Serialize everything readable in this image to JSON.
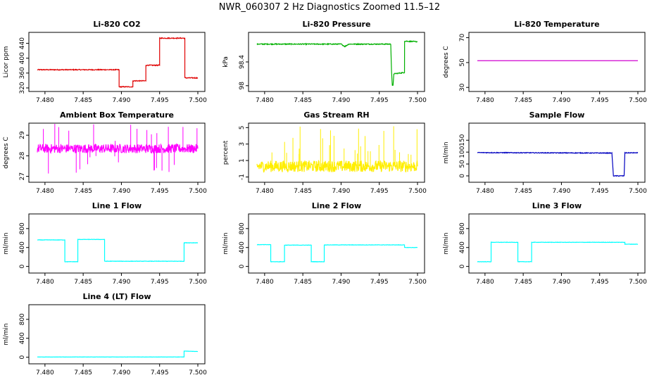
{
  "figure": {
    "title": "NWR_060307  2 Hz Diagnostics Zoomed 11.5–12"
  },
  "chart_data": [
    {
      "type": "line",
      "title": "Li-820 CO2",
      "ylabel": "Licor ppm",
      "xlim": [
        7.479,
        7.5
      ],
      "xticks": [
        "7.480",
        "7.485",
        "7.490",
        "7.495",
        "7.500"
      ],
      "ylim": [
        318,
        462
      ],
      "yticks": [
        320,
        360,
        400,
        440
      ],
      "color": "#e00000",
      "noise": 1.2,
      "series": [
        {
          "x": [
            7.479,
            7.4897,
            7.4897,
            7.4915,
            7.4915,
            7.4932,
            7.4932,
            7.495,
            7.495,
            7.4983,
            7.4983,
            7.5
          ],
          "y": [
            369,
            369,
            323,
            323,
            339,
            339,
            381,
            381,
            454,
            454,
            347,
            347
          ]
        }
      ]
    },
    {
      "type": "line",
      "title": "Li-820 Pressure",
      "ylabel": "kPa",
      "xlim": [
        7.479,
        7.5
      ],
      "xticks": [
        "7.480",
        "7.485",
        "7.490",
        "7.495",
        "7.500"
      ],
      "ylim": [
        97.95,
        98.85
      ],
      "yticks": [
        98.0,
        98.4
      ],
      "color": "#00b000",
      "noise": 0.008,
      "series": [
        {
          "x": [
            7.479,
            7.49,
            7.4905,
            7.491,
            7.4965,
            7.4966,
            7.4967,
            7.4968,
            7.4969,
            7.4982,
            7.4983,
            7.49831,
            7.5
          ],
          "y": [
            98.7,
            98.7,
            98.66,
            98.7,
            98.7,
            98.25,
            98.0,
            98.0,
            98.2,
            98.22,
            98.22,
            98.75,
            98.74
          ]
        }
      ]
    },
    {
      "type": "line",
      "title": "Li-820 Temperature",
      "ylabel": "degrees C",
      "xlim": [
        7.479,
        7.5
      ],
      "xticks": [
        "7.480",
        "7.485",
        "7.490",
        "7.495",
        "7.500"
      ],
      "ylim": [
        29,
        72
      ],
      "yticks": [
        30,
        50,
        70
      ],
      "color": "#d000d0",
      "noise": 0,
      "series": [
        {
          "x": [
            7.479,
            7.5
          ],
          "y": [
            51.5,
            51.5
          ]
        }
      ]
    },
    {
      "type": "line",
      "title": "Ambient Box Temperature",
      "ylabel": "degrees C",
      "xlim": [
        7.479,
        7.5
      ],
      "xticks": [
        "7.480",
        "7.485",
        "7.490",
        "7.495",
        "7.500"
      ],
      "ylim": [
        26.85,
        29.45
      ],
      "yticks": [
        27.0,
        28.0,
        29.0
      ],
      "color": "#ff00ff",
      "noise": 0.22,
      "series": [
        {
          "x": [
            7.479,
            7.5
          ],
          "y": [
            28.35,
            28.35
          ]
        }
      ]
    },
    {
      "type": "line",
      "title": "Gas Stream RH",
      "ylabel": "percent",
      "xlim": [
        7.479,
        7.5
      ],
      "xticks": [
        "7.480",
        "7.485",
        "7.490",
        "7.495",
        "7.500"
      ],
      "ylim": [
        -1.3,
        5.2
      ],
      "yticks": [
        -1,
        1,
        3,
        5
      ],
      "color": "#ffee00",
      "noise": 0.7,
      "series": [
        {
          "x": [
            7.479,
            7.5
          ],
          "y": [
            0.3,
            0.3
          ]
        }
      ]
    },
    {
      "type": "line",
      "title": "Sample Flow",
      "ylabel": "ml/min",
      "xlim": [
        7.479,
        7.5
      ],
      "xticks": [
        "7.480",
        "7.485",
        "7.490",
        "7.495",
        "7.500"
      ],
      "ylim": [
        -15,
        210
      ],
      "yticks": [
        0,
        50,
        100,
        150
      ],
      "color": "#0000c0",
      "noise": 1.5,
      "series": [
        {
          "x": [
            7.479,
            7.4966,
            7.4968,
            7.4982,
            7.4983,
            7.5
          ],
          "y": [
            98,
            96,
            0,
            0,
            97,
            97
          ]
        }
      ]
    },
    {
      "type": "line",
      "title": "Line 1 Flow",
      "ylabel": "ml/min",
      "xlim": [
        7.479,
        7.5
      ],
      "xticks": [
        "7.480",
        "7.485",
        "7.490",
        "7.495",
        "7.500"
      ],
      "ylim": [
        -80,
        1050
      ],
      "yticks": [
        0,
        400,
        800
      ],
      "color": "#00ffff",
      "noise": 4,
      "series": [
        {
          "x": [
            7.479,
            7.4826,
            7.4826,
            7.4843,
            7.4843,
            7.4878,
            7.4878,
            7.4982,
            7.4982,
            7.5
          ],
          "y": [
            560,
            560,
            100,
            100,
            570,
            570,
            110,
            110,
            500,
            500
          ]
        }
      ]
    },
    {
      "type": "line",
      "title": "Line 2 Flow",
      "ylabel": "ml/min",
      "xlim": [
        7.479,
        7.5
      ],
      "xticks": [
        "7.480",
        "7.485",
        "7.490",
        "7.495",
        "7.500"
      ],
      "ylim": [
        -80,
        1050
      ],
      "yticks": [
        0,
        400,
        800
      ],
      "color": "#00ffff",
      "noise": 4,
      "series": [
        {
          "x": [
            7.479,
            7.4808,
            7.4808,
            7.4826,
            7.4826,
            7.4861,
            7.4861,
            7.4878,
            7.4878,
            7.4983,
            7.4983,
            7.5
          ],
          "y": [
            460,
            460,
            100,
            100,
            450,
            450,
            100,
            100,
            455,
            455,
            400,
            400
          ]
        }
      ]
    },
    {
      "type": "line",
      "title": "Line 3 Flow",
      "ylabel": "ml/min",
      "xlim": [
        7.479,
        7.5
      ],
      "xticks": [
        "7.480",
        "7.485",
        "7.490",
        "7.495",
        "7.500"
      ],
      "ylim": [
        -80,
        1050
      ],
      "yticks": [
        0,
        400,
        800
      ],
      "color": "#00ffff",
      "noise": 4,
      "series": [
        {
          "x": [
            7.479,
            7.4808,
            7.4808,
            7.4843,
            7.4843,
            7.4861,
            7.4861,
            7.4983,
            7.4983,
            7.5
          ],
          "y": [
            100,
            100,
            510,
            510,
            100,
            100,
            510,
            510,
            470,
            470
          ]
        }
      ]
    },
    {
      "type": "line",
      "title": "Line 4 (LT) Flow",
      "ylabel": "ml/min",
      "xlim": [
        7.479,
        7.5
      ],
      "xticks": [
        "7.480",
        "7.485",
        "7.490",
        "7.495",
        "7.500"
      ],
      "ylim": [
        -80,
        1050
      ],
      "yticks": [
        0,
        400,
        800
      ],
      "color": "#00ffff",
      "noise": 2,
      "series": [
        {
          "x": [
            7.479,
            7.4982,
            7.4982,
            7.5
          ],
          "y": [
            5,
            5,
            130,
            120
          ]
        }
      ]
    }
  ]
}
